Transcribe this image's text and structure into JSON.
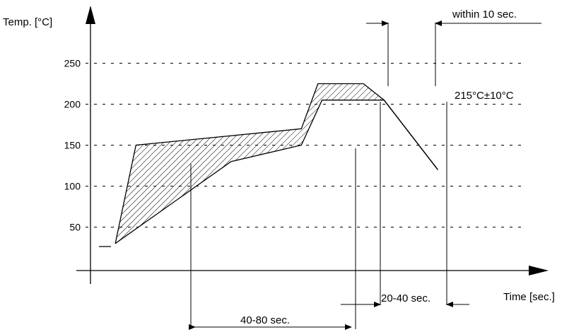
{
  "chart_data": {
    "type": "area",
    "ylabel": "Temp. [°C]",
    "xlabel": "Time [sec.]",
    "y_ticks": [
      "250",
      "200",
      "150",
      "100",
      "50"
    ],
    "y_tick_values": [
      250,
      200,
      150,
      100,
      50
    ],
    "ylim": [
      -3,
      297
    ],
    "grid": true,
    "series": [
      {
        "values": [
          [
            30,
            30
          ],
          [
            55,
            150
          ],
          [
            255,
            170
          ],
          [
            275,
            225
          ],
          [
            330,
            225
          ],
          [
            355,
            205
          ],
          [
            420,
            120
          ]
        ]
      },
      {
        "values": [
          [
            30,
            30
          ],
          [
            170,
            130
          ],
          [
            255,
            150
          ],
          [
            280,
            205
          ],
          [
            355,
            205
          ],
          [
            420,
            120
          ]
        ]
      }
    ],
    "annotations": {
      "peak_temp": "215°C±10°C",
      "within": "within 10 sec.",
      "reflow_time": "20-40 sec.",
      "preheat_time": "40-80 sec."
    },
    "colors": {
      "line": "#000000",
      "hatch": "#000000"
    }
  }
}
